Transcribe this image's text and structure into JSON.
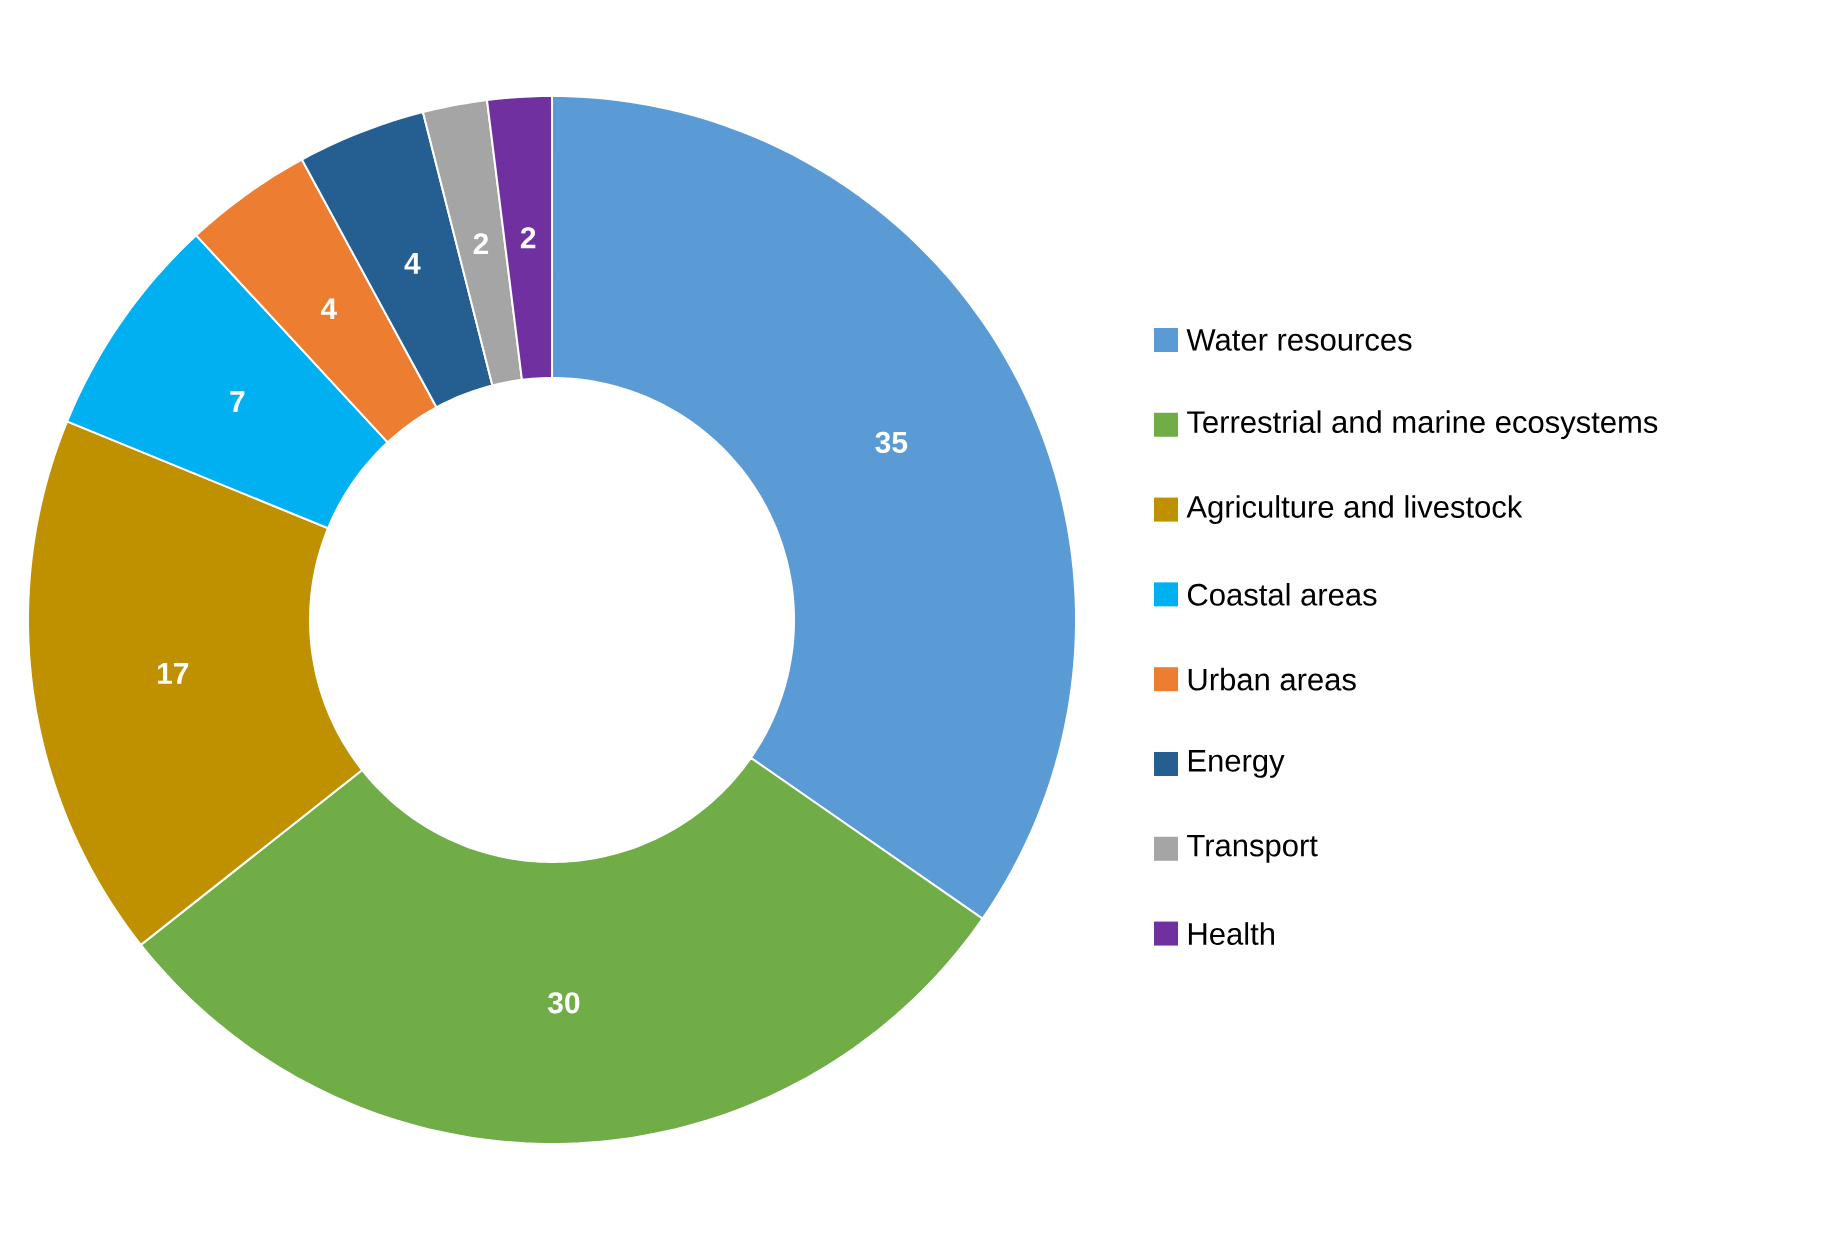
{
  "chart_data": {
    "type": "donut",
    "categories": [
      "Water resources",
      "Terrestrial and marine ecosystems",
      "Agriculture and livestock",
      "Coastal areas",
      "Urban areas",
      "Energy",
      "Transport",
      "Health"
    ],
    "values": [
      35,
      30,
      17,
      7,
      4,
      4,
      2,
      2
    ],
    "colors": [
      "#5b9bd5",
      "#70ad47",
      "#bf9000",
      "#00b0f0",
      "#ed7d31",
      "#255e91",
      "#a5a5a5",
      "#7030a0"
    ],
    "data_labels": true,
    "legend": "right"
  }
}
